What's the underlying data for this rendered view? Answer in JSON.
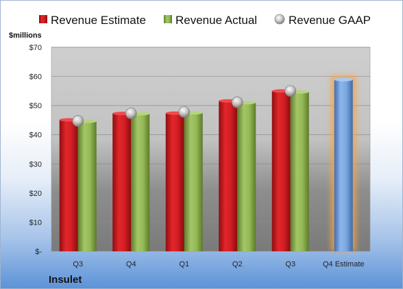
{
  "chart_data": {
    "type": "bar",
    "company": "Insulet",
    "ylabel": "$millions",
    "ylim": [
      0,
      70
    ],
    "yticks": [
      {
        "value": 0,
        "label": "$-"
      },
      {
        "value": 10,
        "label": "$10"
      },
      {
        "value": 20,
        "label": "$20"
      },
      {
        "value": 30,
        "label": "$30"
      },
      {
        "value": 40,
        "label": "$40"
      },
      {
        "value": 50,
        "label": "$50"
      },
      {
        "value": 60,
        "label": "$60"
      },
      {
        "value": 70,
        "label": "$70"
      }
    ],
    "categories": [
      "Q3",
      "Q4",
      "Q1",
      "Q2",
      "Q3",
      "Q4 Estimate"
    ],
    "legend_position": "top",
    "grid": true,
    "series": [
      {
        "name": "Revenue Estimate",
        "kind": "bar",
        "color": "#c0161b",
        "values": [
          45.1,
          47.3,
          47.4,
          51.6,
          55.0,
          58.9
        ]
      },
      {
        "name": "Revenue Actual",
        "kind": "bar",
        "color": "#8db04a",
        "values": [
          44.6,
          47.2,
          47.5,
          51.0,
          54.7,
          null
        ]
      },
      {
        "name": "Revenue GAAP",
        "kind": "marker",
        "color": "#b8b8b8",
        "values": [
          44.7,
          47.3,
          47.8,
          51.1,
          55.0,
          null
        ]
      }
    ],
    "estimate_bar_color": "#6f9fd8",
    "estimate_glow_color": "#f5a445"
  }
}
